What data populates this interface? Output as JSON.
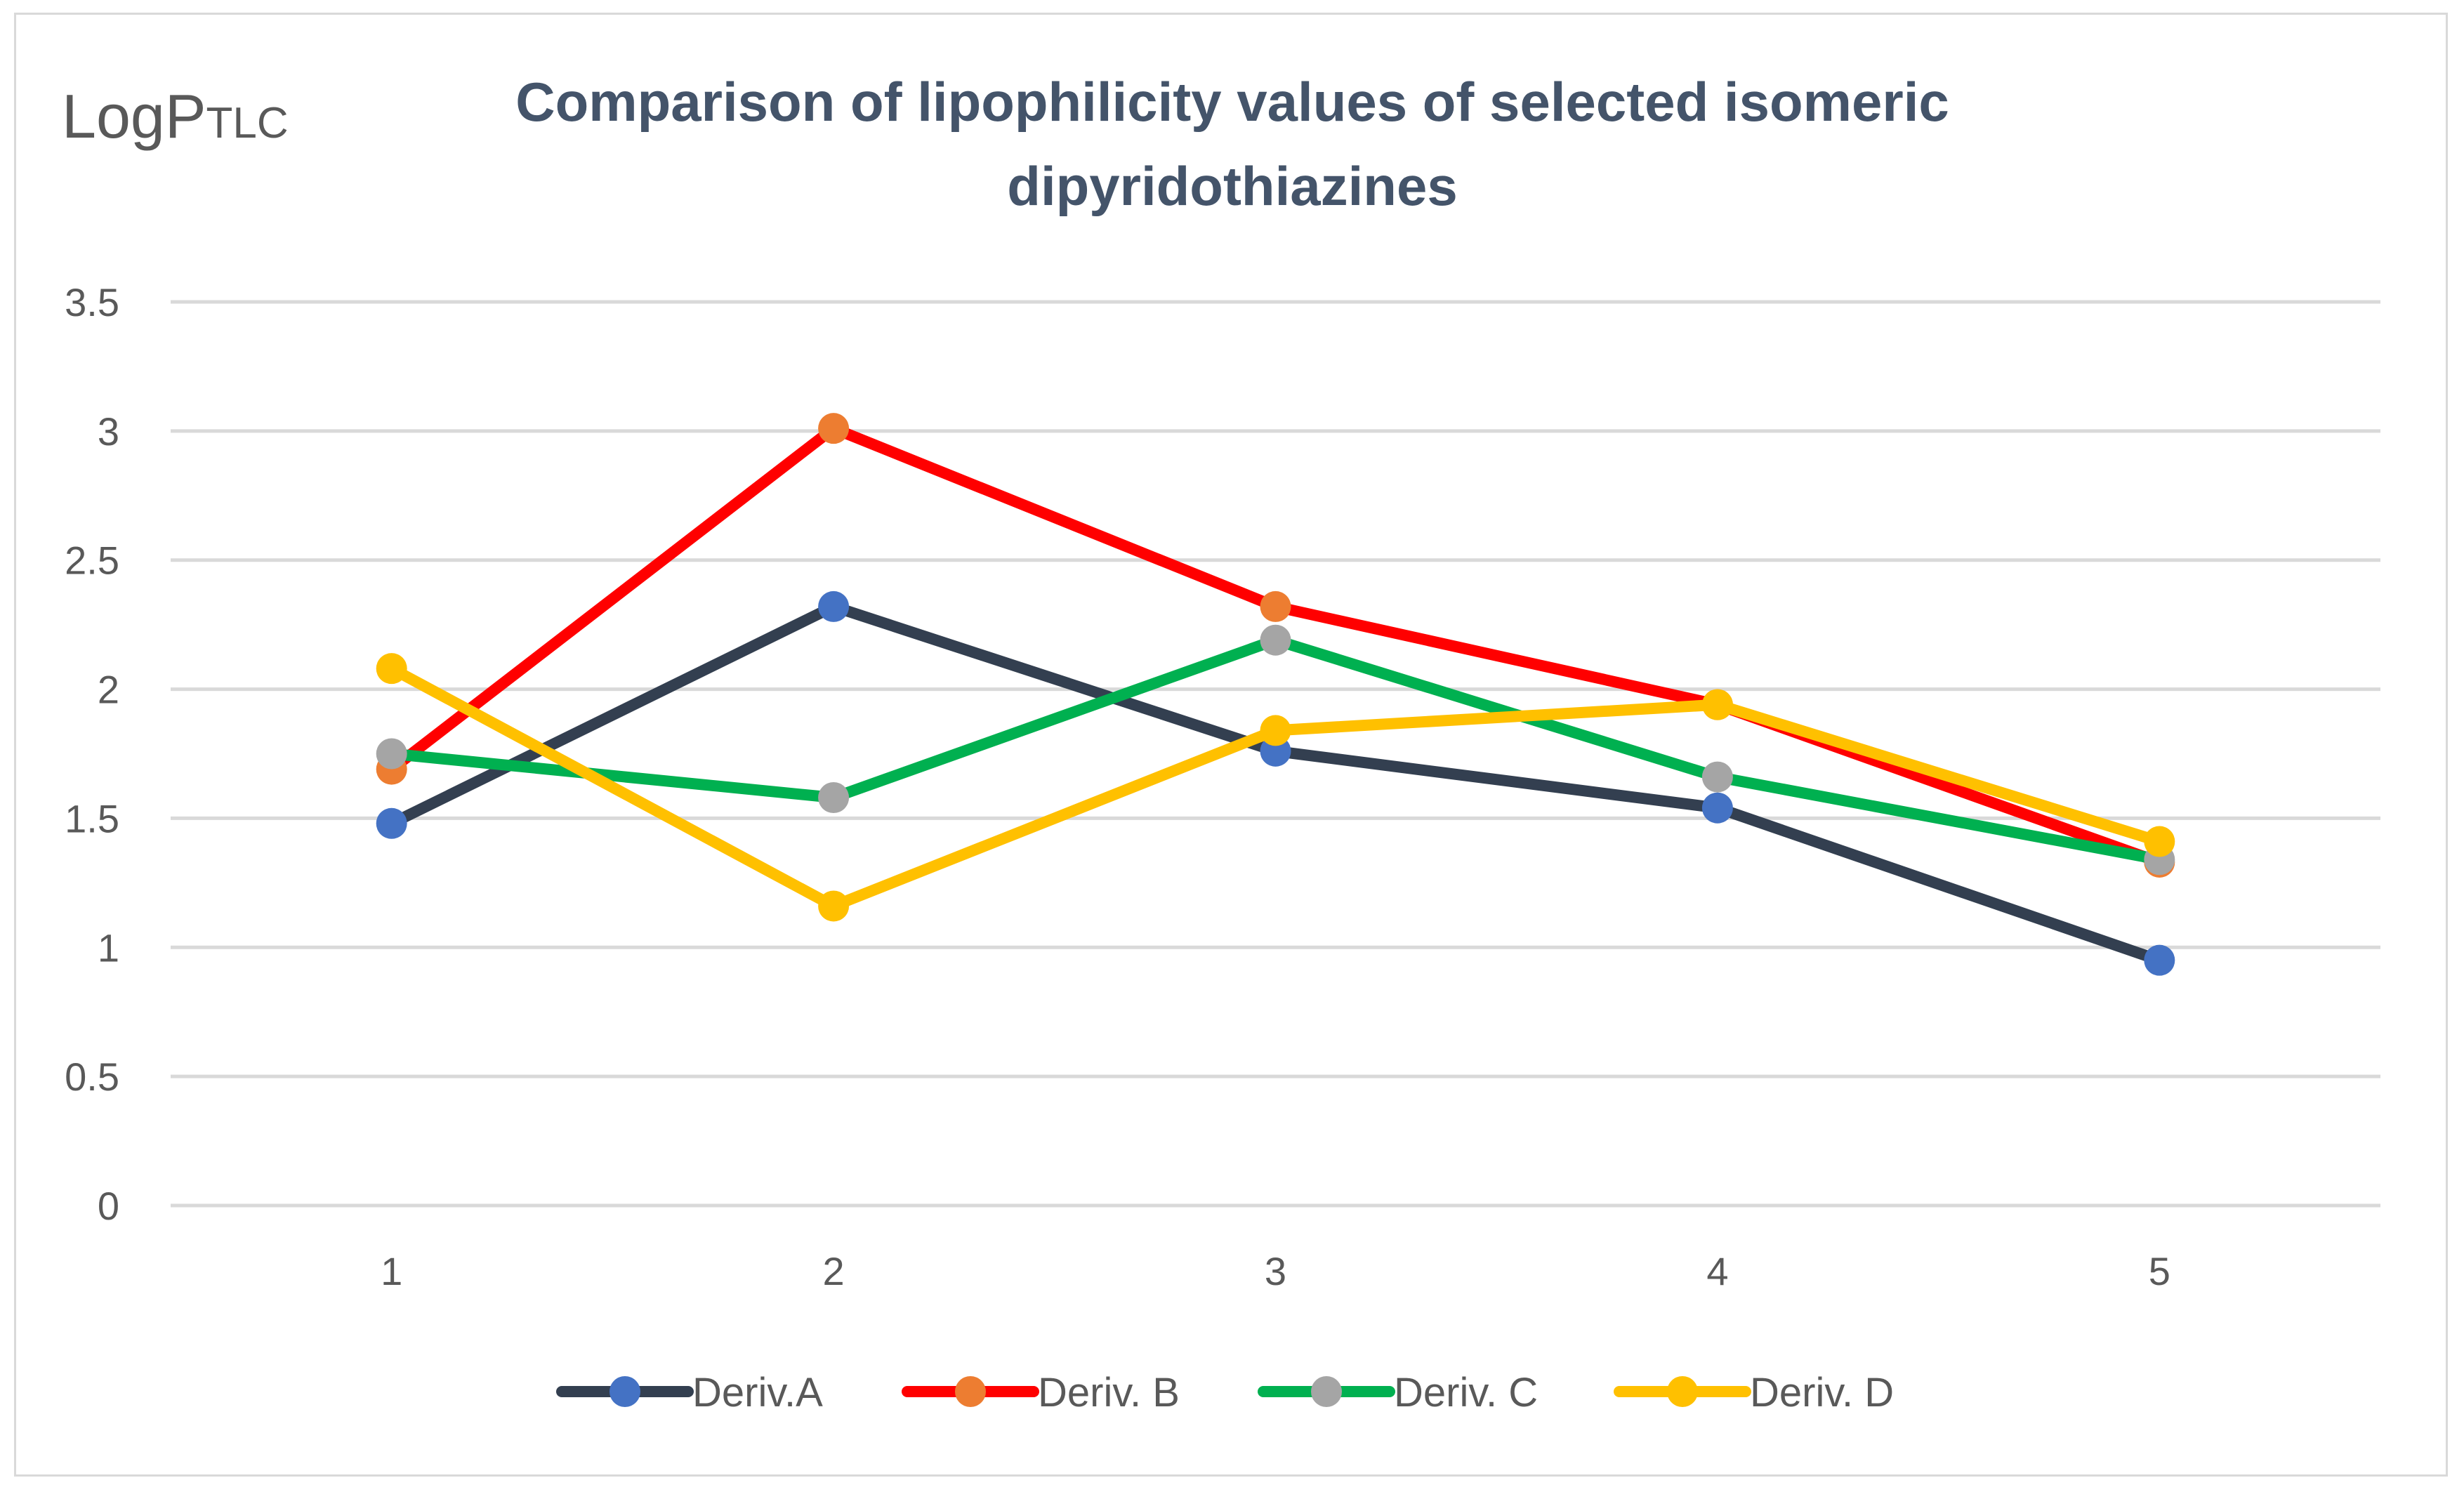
{
  "corner_label": {
    "main": "LogP",
    "sub": "TLC"
  },
  "chart_data": {
    "type": "line",
    "title": "Comparison of lipophilicity values of selected isomeric dipyridothiazines",
    "title_lines": [
      "Comparison of lipophilicity values of selected isomeric",
      "dipyridothiazines"
    ],
    "xlabel": "",
    "ylabel": "LogPTLC",
    "categories": [
      "1",
      "2",
      "3",
      "4",
      "5"
    ],
    "ylim": [
      0,
      3.5
    ],
    "yticks": [
      0,
      0.5,
      1,
      1.5,
      2,
      2.5,
      3,
      3.5
    ],
    "ytick_labels": [
      "0",
      "0.5",
      "1",
      "1.5",
      "2",
      "2.5",
      "3",
      "3.5"
    ],
    "grid": true,
    "legend_position": "bottom",
    "series": [
      {
        "name": "Deriv.A",
        "line_color": "#333f50",
        "marker_color": "#4472c4",
        "values": [
          1.48,
          2.32,
          1.76,
          1.54,
          0.95
        ]
      },
      {
        "name": "Deriv. B",
        "line_color": "#ff0000",
        "marker_color": "#ed7d31",
        "values": [
          1.69,
          3.01,
          2.32,
          1.94,
          1.33
        ]
      },
      {
        "name": "Deriv. C",
        "line_color": "#00b050",
        "marker_color": "#a5a5a5",
        "values": [
          1.75,
          1.58,
          2.19,
          1.66,
          1.34
        ]
      },
      {
        "name": "Deriv. D",
        "line_color": "#ffc000",
        "marker_color": "#ffc000",
        "values": [
          2.08,
          1.16,
          1.84,
          1.94,
          1.41
        ]
      }
    ]
  }
}
